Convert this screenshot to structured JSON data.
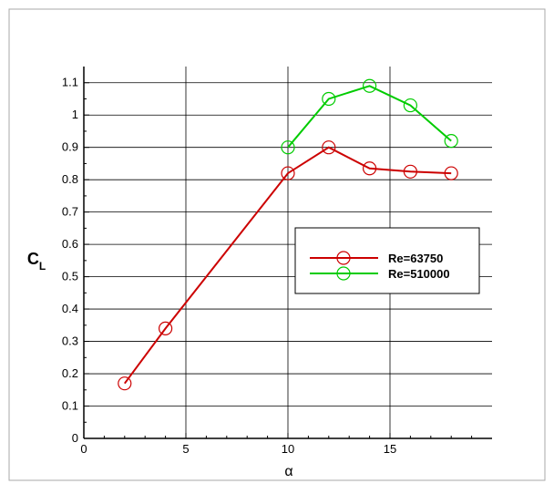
{
  "chart_data": {
    "type": "line",
    "xlabel": "α",
    "ylabel_main": "C",
    "ylabel_sub": "L",
    "xlim": [
      0,
      20
    ],
    "ylim": [
      0,
      1.15
    ],
    "xticks": [
      0,
      5,
      10,
      15
    ],
    "yticks": [
      0,
      0.1,
      0.2,
      0.3,
      0.4,
      0.5,
      0.6,
      0.7,
      0.8,
      0.9,
      1,
      1.1
    ],
    "grid": true,
    "legend_position": "right",
    "series": [
      {
        "name": "Re=63750",
        "color": "#cc0000",
        "marker": "open-circle",
        "x": [
          2,
          4,
          10,
          12,
          14,
          16,
          18
        ],
        "y": [
          0.17,
          0.34,
          0.82,
          0.9,
          0.835,
          0.825,
          0.82
        ]
      },
      {
        "name": "Re=510000",
        "color": "#00cc00",
        "marker": "open-circle",
        "x": [
          10,
          12,
          14,
          16,
          18
        ],
        "y": [
          0.9,
          1.05,
          1.09,
          1.03,
          0.92
        ]
      }
    ]
  }
}
